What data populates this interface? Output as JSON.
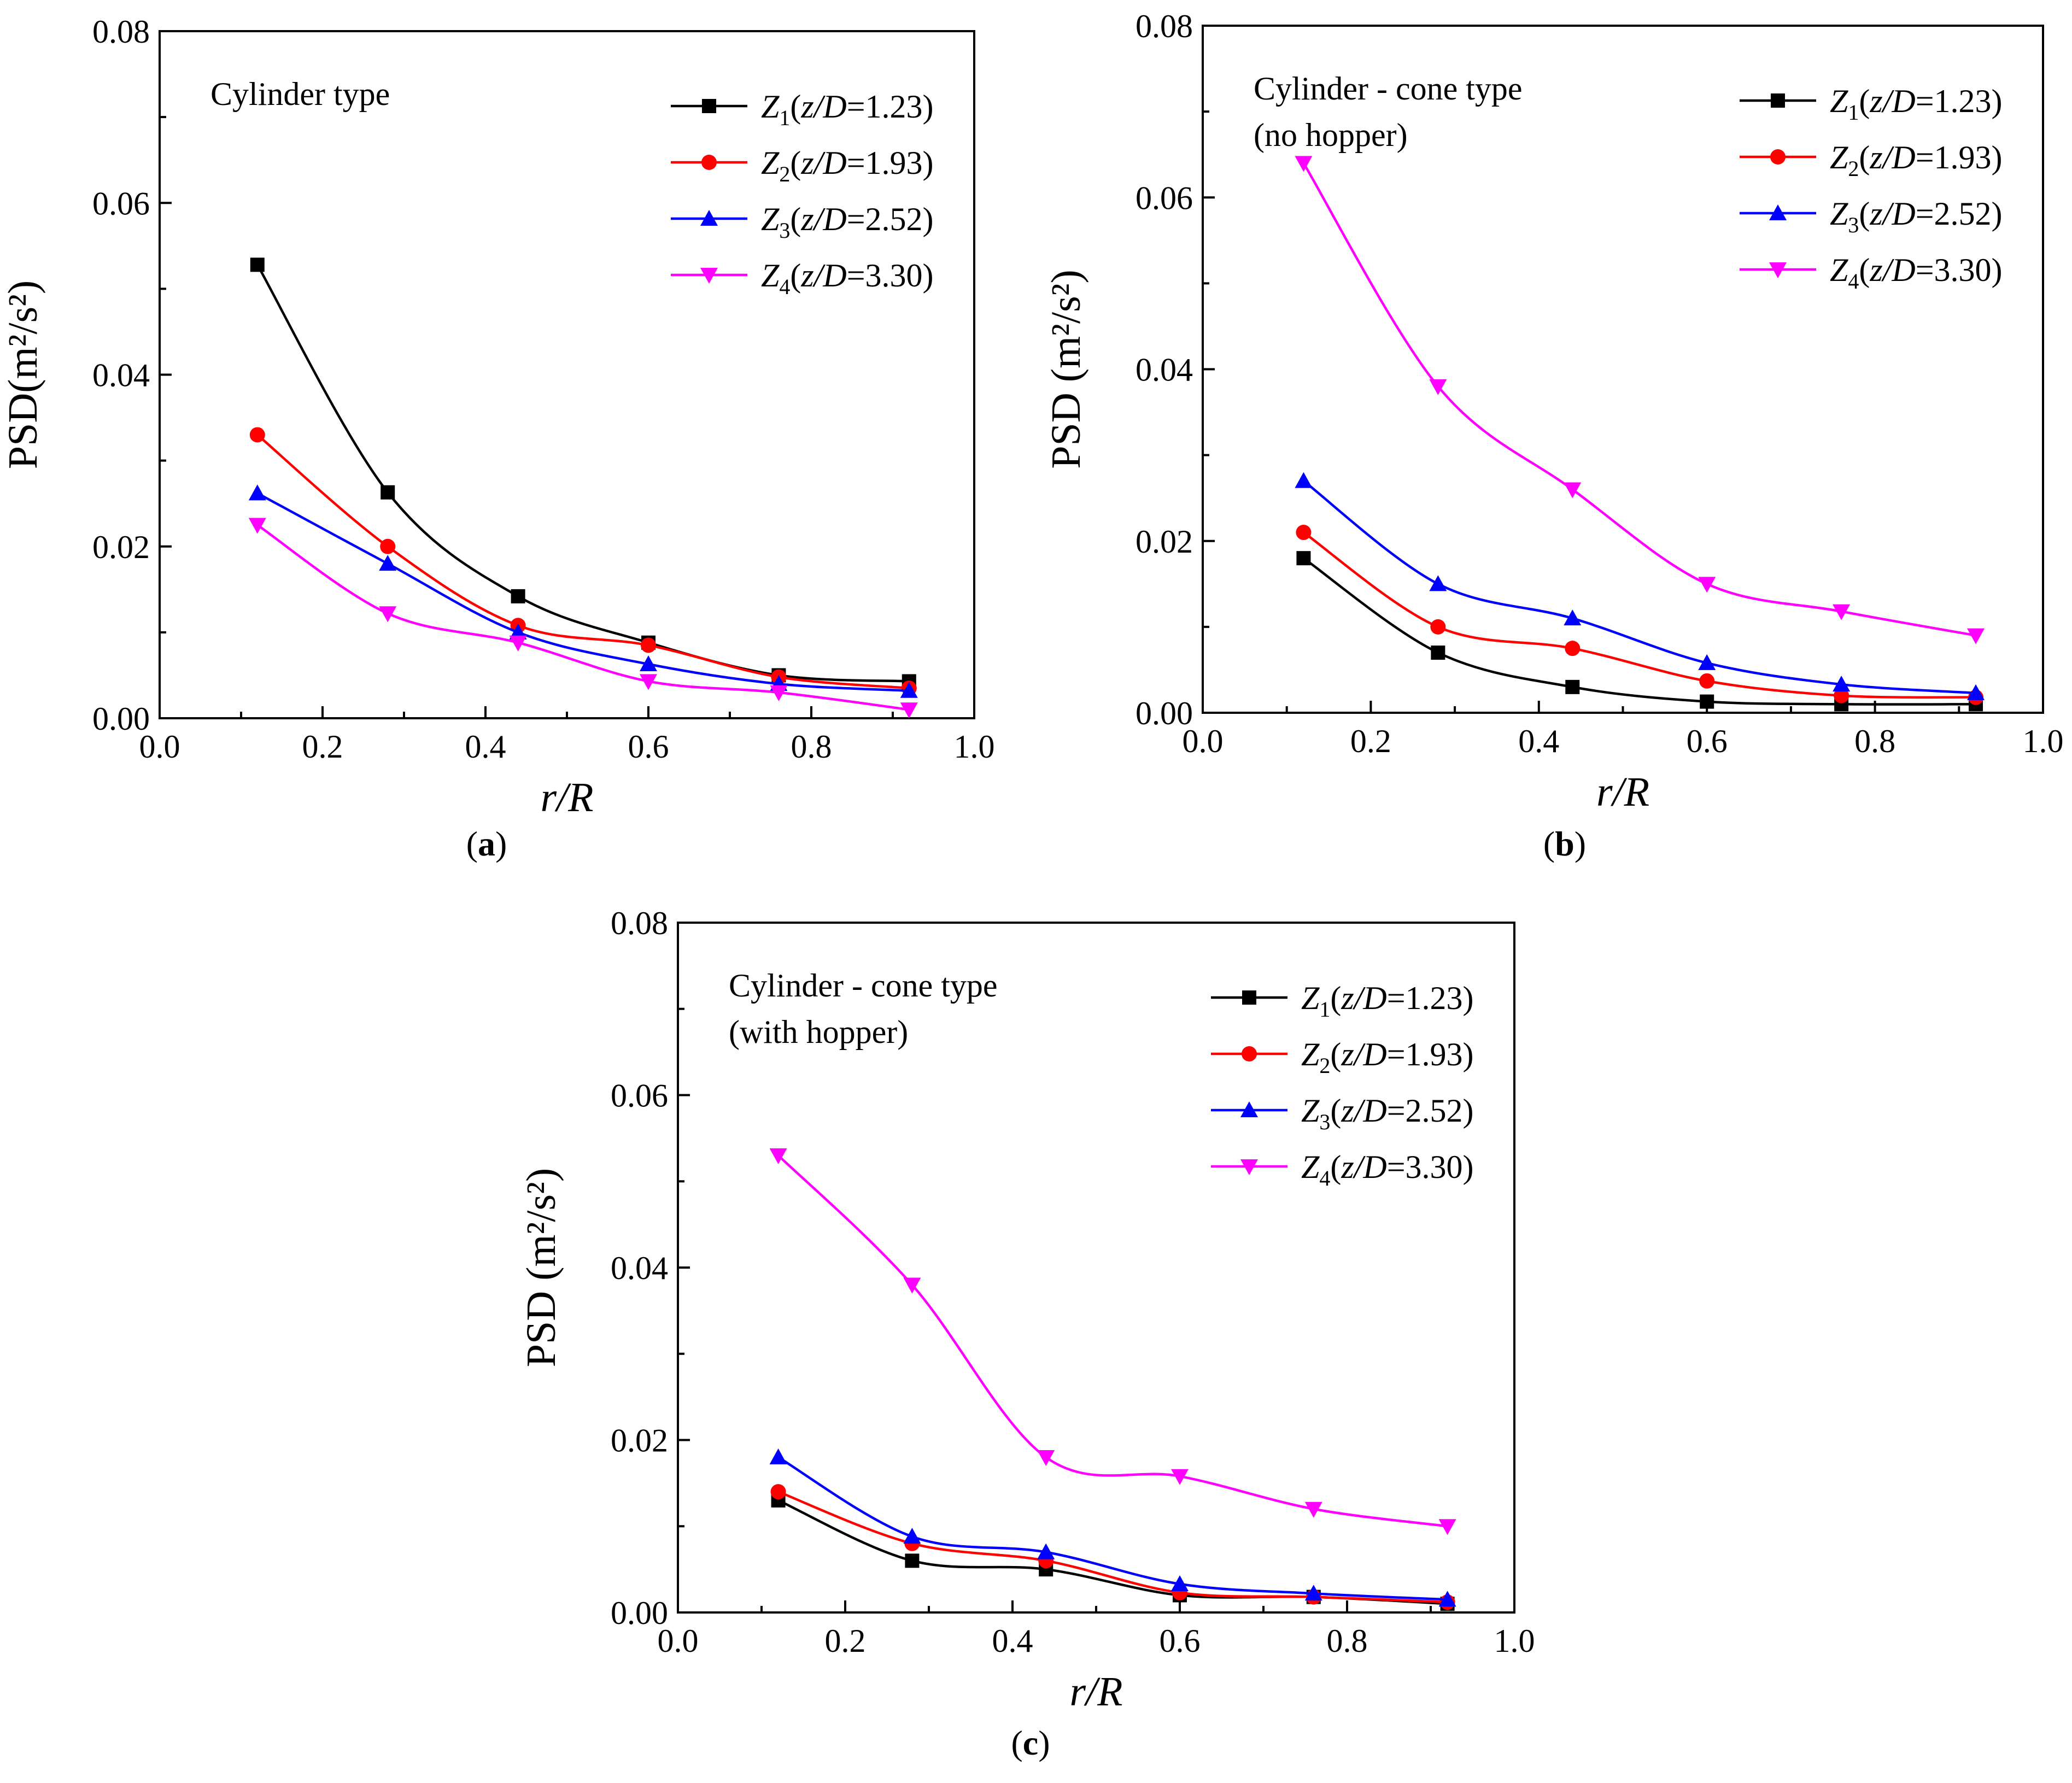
{
  "figure": {
    "series_colors": {
      "Z1": "#000000",
      "Z2": "#ff0000",
      "Z3": "#0000ff",
      "Z4": "#ff00ff"
    },
    "marker_shapes": {
      "Z1": "square",
      "Z2": "circle",
      "Z3": "triangle-up",
      "Z4": "triangle-down"
    }
  },
  "chart_data": [
    {
      "type": "line",
      "panel_label": "a",
      "annotation": [
        "Cylinder type"
      ],
      "xlabel": "r/R",
      "ylabel": "PSD(m²/s²)",
      "xlim": [
        0.0,
        1.0
      ],
      "ylim": [
        0.0,
        0.08
      ],
      "xticks": [
        "0.0",
        "0.2",
        "0.4",
        "0.6",
        "0.8",
        "1.0"
      ],
      "yticks": [
        "0.00",
        "0.02",
        "0.04",
        "0.06",
        "0.08"
      ],
      "legend_position": "top-right",
      "x": [
        0.12,
        0.28,
        0.44,
        0.6,
        0.76,
        0.92
      ],
      "series": [
        {
          "name": "Z1(z/D=1.23)",
          "legend": {
            "var": "Z",
            "sub": "1",
            "ratio": "z/D",
            "value": "=1.23"
          },
          "values": [
            0.0528,
            0.0263,
            0.0142,
            0.0088,
            0.005,
            0.0043
          ]
        },
        {
          "name": "Z2(z/D=1.93)",
          "legend": {
            "var": "Z",
            "sub": "2",
            "ratio": "z/D",
            "value": "=1.93"
          },
          "values": [
            0.033,
            0.02,
            0.0108,
            0.0085,
            0.0048,
            0.0035
          ]
        },
        {
          "name": "Z3(z/D=2.52)",
          "legend": {
            "var": "Z",
            "sub": "3",
            "ratio": "z/D",
            "value": "=2.52"
          },
          "values": [
            0.0262,
            0.018,
            0.01,
            0.0063,
            0.004,
            0.0032
          ]
        },
        {
          "name": "Z4(z/D=3.30)",
          "legend": {
            "var": "Z",
            "sub": "4",
            "ratio": "z/D",
            "value": "=3.30"
          },
          "values": [
            0.0225,
            0.0122,
            0.0088,
            0.0043,
            0.003,
            0.001
          ]
        }
      ]
    },
    {
      "type": "line",
      "panel_label": "b",
      "annotation": [
        "Cylinder - cone type",
        "(no hopper)"
      ],
      "xlabel": "r/R",
      "ylabel": "PSD (m²/s²)",
      "xlim": [
        0.0,
        1.0
      ],
      "ylim": [
        0.0,
        0.08
      ],
      "xticks": [
        "0.0",
        "0.2",
        "0.4",
        "0.6",
        "0.8",
        "1.0"
      ],
      "yticks": [
        "0.00",
        "0.02",
        "0.04",
        "0.06",
        "0.08"
      ],
      "legend_position": "top-right",
      "x": [
        0.12,
        0.28,
        0.44,
        0.6,
        0.76,
        0.92
      ],
      "series": [
        {
          "name": "Z1(z/D=1.23)",
          "legend": {
            "var": "Z",
            "sub": "1",
            "ratio": "z/D",
            "value": "=1.23"
          },
          "values": [
            0.018,
            0.007,
            0.003,
            0.0013,
            0.001,
            0.001
          ]
        },
        {
          "name": "Z2(z/D=1.93)",
          "legend": {
            "var": "Z",
            "sub": "2",
            "ratio": "z/D",
            "value": "=1.93"
          },
          "values": [
            0.021,
            0.01,
            0.0075,
            0.0037,
            0.002,
            0.0018
          ]
        },
        {
          "name": "Z3(z/D=2.52)",
          "legend": {
            "var": "Z",
            "sub": "3",
            "ratio": "z/D",
            "value": "=2.52"
          },
          "values": [
            0.027,
            0.015,
            0.011,
            0.0058,
            0.0033,
            0.0023
          ]
        },
        {
          "name": "Z4(z/D=3.30)",
          "legend": {
            "var": "Z",
            "sub": "4",
            "ratio": "z/D",
            "value": "=3.30"
          },
          "values": [
            0.064,
            0.038,
            0.026,
            0.015,
            0.0118,
            0.009
          ]
        }
      ]
    },
    {
      "type": "line",
      "panel_label": "c",
      "annotation": [
        "Cylinder - cone type",
        "(with hopper)"
      ],
      "xlabel": "r/R",
      "ylabel": "PSD (m²/s²)",
      "xlim": [
        0.0,
        1.0
      ],
      "ylim": [
        0.0,
        0.08
      ],
      "xticks": [
        "0.0",
        "0.2",
        "0.4",
        "0.6",
        "0.8",
        "1.0"
      ],
      "yticks": [
        "0.00",
        "0.02",
        "0.04",
        "0.06",
        "0.08"
      ],
      "legend_position": "top-right",
      "x": [
        0.12,
        0.28,
        0.44,
        0.6,
        0.76,
        0.92
      ],
      "series": [
        {
          "name": "Z1(z/D=1.23)",
          "legend": {
            "var": "Z",
            "sub": "1",
            "ratio": "z/D",
            "value": "=1.23"
          },
          "values": [
            0.013,
            0.006,
            0.005,
            0.002,
            0.0018,
            0.001
          ]
        },
        {
          "name": "Z2(z/D=1.93)",
          "legend": {
            "var": "Z",
            "sub": "2",
            "ratio": "z/D",
            "value": "=1.93"
          },
          "values": [
            0.014,
            0.008,
            0.006,
            0.0023,
            0.0018,
            0.0012
          ]
        },
        {
          "name": "Z3(z/D=2.52)",
          "legend": {
            "var": "Z",
            "sub": "3",
            "ratio": "z/D",
            "value": "=2.52"
          },
          "values": [
            0.018,
            0.0088,
            0.007,
            0.0033,
            0.0022,
            0.0015
          ]
        },
        {
          "name": "Z4(z/D=3.30)",
          "legend": {
            "var": "Z",
            "sub": "4",
            "ratio": "z/D",
            "value": "=3.30"
          },
          "values": [
            0.053,
            0.038,
            0.018,
            0.0158,
            0.012,
            0.01
          ]
        }
      ]
    }
  ]
}
